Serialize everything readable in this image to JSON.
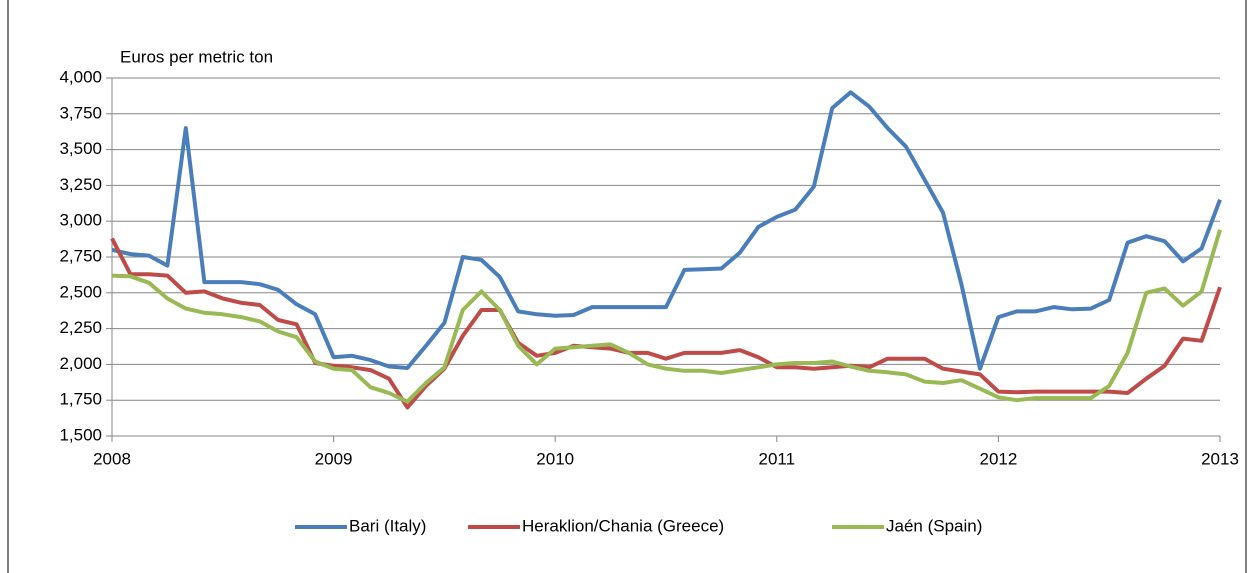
{
  "chart_data": {
    "type": "line",
    "y_label": "Euros per metric ton",
    "x": [
      2008,
      2008.083,
      2008.167,
      2008.25,
      2008.333,
      2008.417,
      2008.5,
      2008.583,
      2008.667,
      2008.75,
      2008.833,
      2008.917,
      2009,
      2009.083,
      2009.167,
      2009.25,
      2009.333,
      2009.417,
      2009.5,
      2009.583,
      2009.667,
      2009.75,
      2009.833,
      2009.917,
      2010,
      2010.083,
      2010.167,
      2010.25,
      2010.333,
      2010.417,
      2010.5,
      2010.583,
      2010.667,
      2010.75,
      2010.833,
      2010.917,
      2011,
      2011.083,
      2011.167,
      2011.25,
      2011.333,
      2011.417,
      2011.5,
      2011.583,
      2011.667,
      2011.75,
      2011.833,
      2011.917,
      2012,
      2012.083,
      2012.167,
      2012.25,
      2012.333,
      2012.417,
      2012.5,
      2012.583,
      2012.667,
      2012.75,
      2012.833,
      2012.917,
      2013
    ],
    "series": [
      {
        "name": "Bari (Italy)",
        "color": "#4a7ebb",
        "values": [
          2800,
          2770,
          2760,
          2690,
          3650,
          2575,
          2575,
          2575,
          2560,
          2520,
          2420,
          2350,
          2050,
          2060,
          2030,
          1985,
          1975,
          2130,
          2290,
          2750,
          2730,
          2610,
          2370,
          2350,
          2340,
          2345,
          2400,
          2400,
          2400,
          2400,
          2400,
          2660,
          2665,
          2670,
          2780,
          2960,
          3030,
          3080,
          3240,
          3790,
          3900,
          3800,
          3650,
          3520,
          3290,
          3060,
          2560,
          1970,
          2330,
          2370,
          2370,
          2400,
          2385,
          2390,
          2450,
          2850,
          2895,
          2860,
          2720,
          2810,
          3150
        ]
      },
      {
        "name": "Heraklion/Chania (Greece)",
        "color": "#be4b48",
        "values": [
          2880,
          2630,
          2630,
          2620,
          2500,
          2510,
          2460,
          2430,
          2415,
          2310,
          2280,
          2010,
          1990,
          1980,
          1960,
          1900,
          1700,
          1850,
          1970,
          2200,
          2380,
          2380,
          2150,
          2060,
          2080,
          2130,
          2120,
          2110,
          2080,
          2080,
          2040,
          2080,
          2080,
          2080,
          2100,
          2050,
          1980,
          1980,
          1970,
          1980,
          1990,
          1980,
          2040,
          2040,
          2040,
          1970,
          1950,
          1930,
          1810,
          1805,
          1810,
          1810,
          1810,
          1810,
          1810,
          1800,
          1900,
          1990,
          2180,
          2165,
          2540
        ]
      },
      {
        "name": "Jaén (Spain)",
        "color": "#98b954",
        "values": [
          2620,
          2615,
          2570,
          2460,
          2390,
          2360,
          2350,
          2330,
          2300,
          2230,
          2190,
          2020,
          1970,
          1960,
          1840,
          1800,
          1740,
          1870,
          1980,
          2380,
          2510,
          2380,
          2130,
          2000,
          2110,
          2120,
          2130,
          2140,
          2080,
          2000,
          1970,
          1955,
          1955,
          1940,
          1960,
          1980,
          2000,
          2010,
          2010,
          2020,
          1985,
          1955,
          1945,
          1930,
          1880,
          1870,
          1890,
          1830,
          1770,
          1750,
          1765,
          1765,
          1765,
          1765,
          1850,
          2080,
          2500,
          2530,
          2410,
          2510,
          2940
        ]
      }
    ],
    "xlim": [
      2008,
      2013
    ],
    "xticks": [
      2008,
      2009,
      2010,
      2011,
      2012,
      2013
    ],
    "ylim": [
      1500,
      4000
    ],
    "yticks": [
      {
        "value": 1500,
        "label": "1,500"
      },
      {
        "value": 1750,
        "label": "1,750"
      },
      {
        "value": 2000,
        "label": "2,000"
      },
      {
        "value": 2250,
        "label": "2,250"
      },
      {
        "value": 2500,
        "label": "2,500"
      },
      {
        "value": 2750,
        "label": "2,750"
      },
      {
        "value": 3000,
        "label": "3,000"
      },
      {
        "value": 3250,
        "label": "3,250"
      },
      {
        "value": 3500,
        "label": "3,500"
      },
      {
        "value": 3750,
        "label": "3,750"
      },
      {
        "value": 4000,
        "label": "4,000"
      }
    ],
    "grid": true,
    "legend": "bottom"
  }
}
